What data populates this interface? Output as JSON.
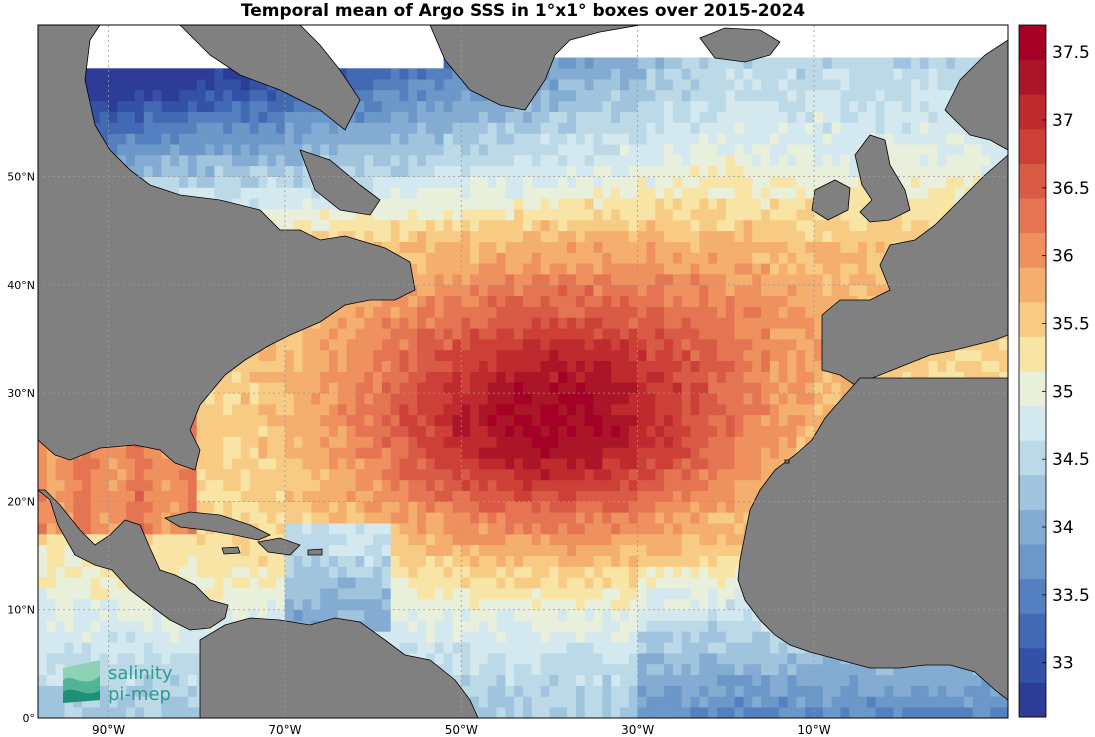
{
  "title": "Temporal mean of Argo SSS in 1°x1° boxes over 2015-2024",
  "map": {
    "lon_range": [
      -98,
      12
    ],
    "lat_range": [
      0,
      64
    ],
    "lon_ticks": [
      {
        "value": -90,
        "label": "90°W"
      },
      {
        "value": -70,
        "label": "70°W"
      },
      {
        "value": -50,
        "label": "50°W"
      },
      {
        "value": -30,
        "label": "30°W"
      },
      {
        "value": -10,
        "label": "10°W"
      }
    ],
    "lat_ticks": [
      {
        "value": 0,
        "label": "0°"
      },
      {
        "value": 10,
        "label": "10°N"
      },
      {
        "value": 20,
        "label": "20°N"
      },
      {
        "value": 30,
        "label": "30°N"
      },
      {
        "value": 40,
        "label": "40°N"
      },
      {
        "value": 50,
        "label": "50°N"
      }
    ],
    "land_color": "#808080",
    "nodata_color": "#ffffff"
  },
  "colorbar": {
    "min": 32.6,
    "max": 37.7,
    "ticks": [
      "33",
      "33.5",
      "34",
      "34.5",
      "35",
      "35.5",
      "36",
      "36.5",
      "37",
      "37.5"
    ],
    "colors": [
      "#2c3c97",
      "#3451a6",
      "#4269b3",
      "#5580bf",
      "#6b97c9",
      "#84acd3",
      "#a0c4dd",
      "#bcd9e8",
      "#d4e9ef",
      "#e8efdb",
      "#f8e4a4",
      "#f8cb84",
      "#f4ae6d",
      "#ee915e",
      "#e57552",
      "#d95a45",
      "#cd4038",
      "#be2a2e",
      "#ab1528",
      "#a50026"
    ]
  },
  "logo": {
    "line1": "salinity",
    "line2": "pi-mep",
    "color": "#2a9d8f"
  }
}
